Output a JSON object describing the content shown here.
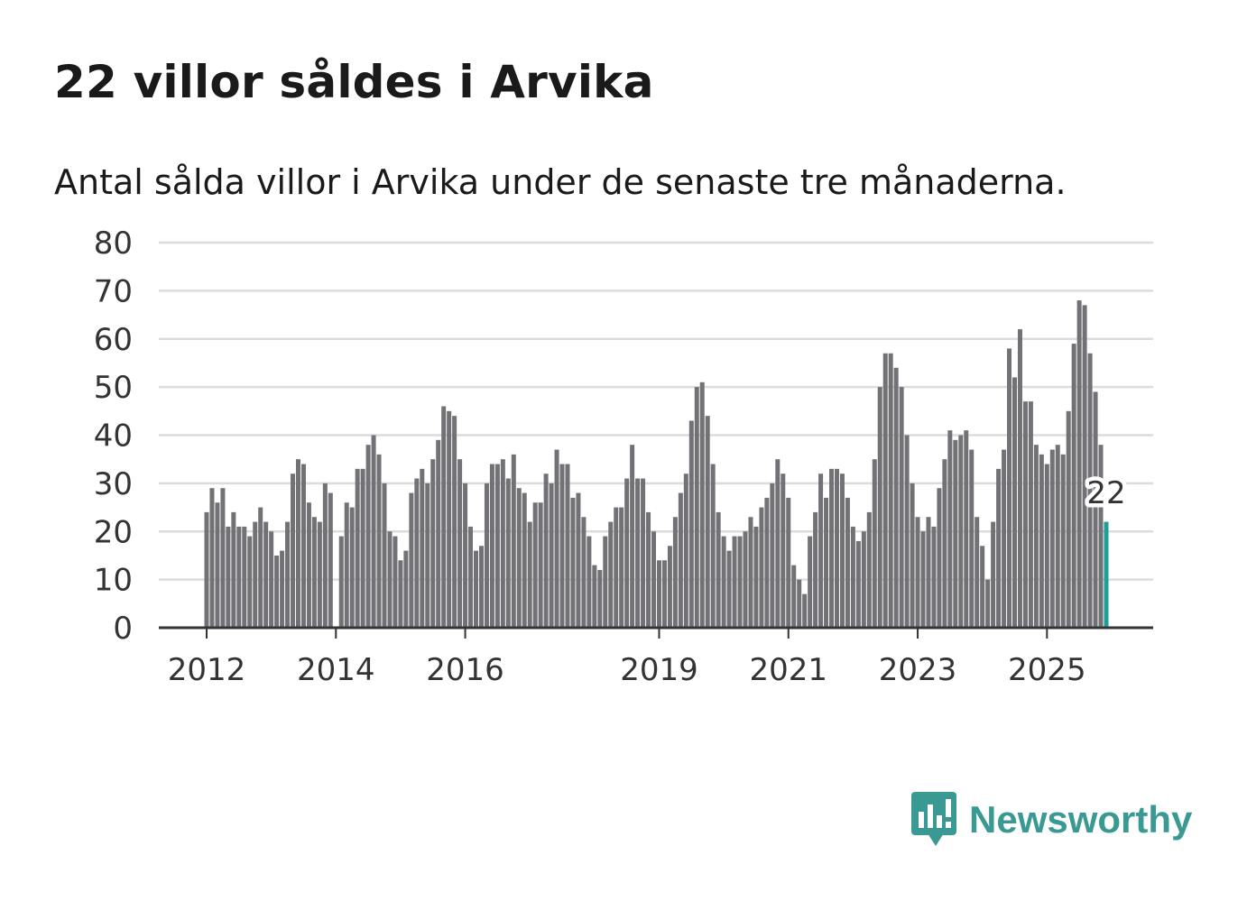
{
  "title": "22 villor såldes i Arvika",
  "subtitle": "Antal sålda villor i Arvika under de senaste tre månaderna.",
  "brand": {
    "name": "Newsworthy",
    "color": "#3a9a93",
    "icon": "newsworthy-logo-icon"
  },
  "colors": {
    "bar": "#727176",
    "highlight": "#1f9e96",
    "grid": "#dcdcdc",
    "axis": "#333333"
  },
  "chart_data": {
    "type": "bar",
    "title": "22 villor såldes i Arvika",
    "xlabel": "",
    "ylabel": "",
    "ylim": [
      0,
      80
    ],
    "yticks": [
      "0",
      "10",
      "20",
      "30",
      "40",
      "50",
      "60",
      "70",
      "80"
    ],
    "x_start": "2012-01",
    "xtick_labels": [
      {
        "label": "2012",
        "index": 0
      },
      {
        "label": "2014",
        "index": 24
      },
      {
        "label": "2016",
        "index": 48
      },
      {
        "label": "2019",
        "index": 84
      },
      {
        "label": "2021",
        "index": 108
      },
      {
        "label": "2023",
        "index": 132
      },
      {
        "label": "2025",
        "index": 156
      }
    ],
    "highlight_label": "22",
    "series": [
      {
        "name": "Antal sålda villor",
        "values": [
          24,
          29,
          26,
          29,
          21,
          24,
          21,
          21,
          19,
          22,
          25,
          22,
          20,
          15,
          16,
          22,
          32,
          35,
          34,
          26,
          23,
          22,
          30,
          28,
          0,
          19,
          26,
          25,
          33,
          33,
          38,
          40,
          36,
          30,
          20,
          19,
          14,
          16,
          28,
          31,
          33,
          30,
          35,
          39,
          46,
          45,
          44,
          35,
          30,
          21,
          16,
          17,
          30,
          34,
          34,
          35,
          31,
          36,
          29,
          28,
          22,
          26,
          26,
          32,
          30,
          37,
          34,
          34,
          27,
          28,
          23,
          19,
          13,
          12,
          19,
          22,
          25,
          25,
          31,
          38,
          31,
          31,
          24,
          20,
          14,
          14,
          17,
          23,
          28,
          32,
          43,
          50,
          51,
          44,
          34,
          24,
          19,
          16,
          19,
          19,
          20,
          23,
          21,
          25,
          27,
          30,
          35,
          32,
          27,
          13,
          10,
          7,
          19,
          24,
          32,
          27,
          33,
          33,
          32,
          27,
          21,
          18,
          20,
          24,
          35,
          50,
          57,
          57,
          54,
          50,
          40,
          30,
          23,
          20,
          23,
          21,
          29,
          35,
          41,
          39,
          40,
          41,
          37,
          23,
          17,
          10,
          22,
          33,
          37,
          58,
          52,
          62,
          47,
          47,
          38,
          36,
          34,
          37,
          38,
          36,
          45,
          59,
          68,
          67,
          57,
          49,
          38,
          22
        ]
      }
    ]
  }
}
